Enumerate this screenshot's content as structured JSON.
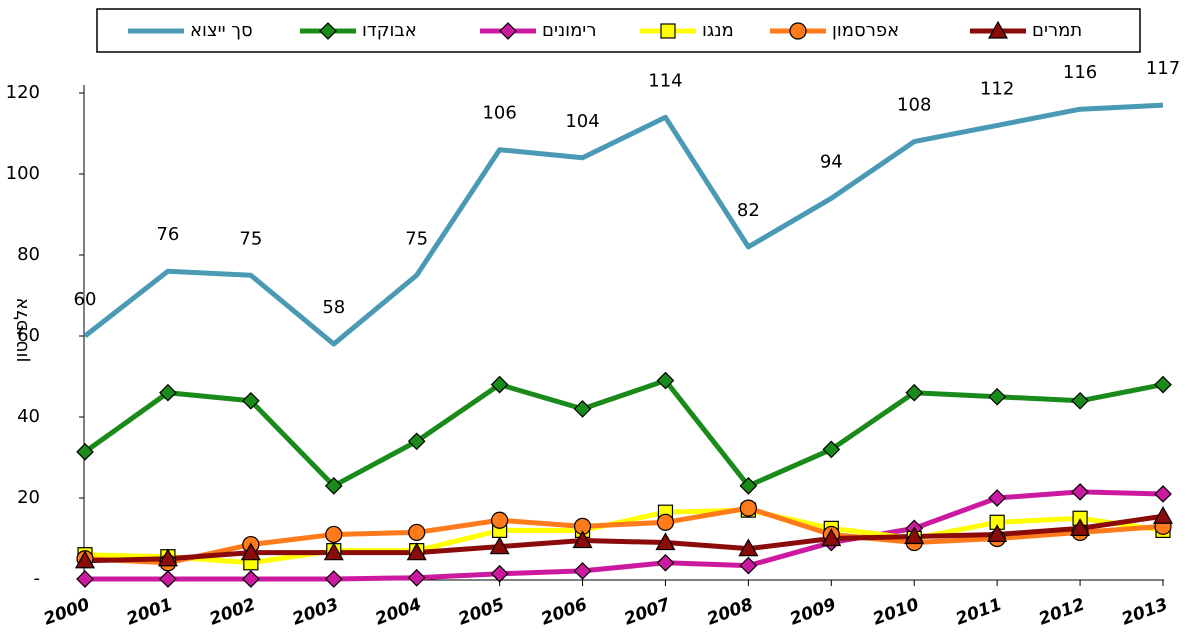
{
  "chart_data": {
    "type": "line",
    "y_label": "אלפי טון",
    "categories": [
      "2000",
      "2001",
      "2002",
      "2003",
      "2004",
      "2005",
      "2006",
      "2007",
      "2008",
      "2009",
      "2010",
      "2011",
      "2012",
      "2013"
    ],
    "ylim": [
      0,
      120
    ],
    "yticks": [
      {
        "value": 0,
        "label": "-"
      },
      20,
      40,
      60,
      80,
      100,
      120
    ],
    "series": [
      {
        "name": "סך ייצוא",
        "color": "#4a9ab5",
        "values": [
          60,
          76,
          75,
          58,
          75,
          106,
          104,
          114,
          82,
          94,
          108,
          112,
          116,
          117
        ]
      },
      {
        "name": "אבוקדו",
        "color": "#1a8a1a",
        "marker": "diamond",
        "values": [
          31.4,
          46,
          44,
          23,
          34,
          48,
          42,
          49,
          23,
          32,
          46,
          45,
          44,
          48
        ]
      },
      {
        "name": "רימונים",
        "color": "#cc1aa0",
        "marker": "diamond",
        "values": [
          0,
          0,
          0,
          0,
          0.3,
          1.3,
          2,
          4,
          3.3,
          9,
          12.5,
          20,
          21.5,
          21
        ]
      },
      {
        "name": "מנגו",
        "color": "#ffff00",
        "marker": "square",
        "values": [
          6,
          5.5,
          4,
          7,
          7,
          12,
          12,
          16.5,
          17,
          12.5,
          10,
          14,
          15,
          12
        ]
      },
      {
        "name": "אפרסמון",
        "color": "#ff7a1a",
        "marker": "circle",
        "values": [
          5,
          4,
          8.5,
          11,
          11.5,
          14.5,
          13,
          14,
          17.5,
          11,
          9,
          10,
          11.5,
          13
        ]
      },
      {
        "name": "תמרים",
        "color": "#8b0a0a",
        "marker": "triangle",
        "values": [
          4.5,
          5,
          6.5,
          6.5,
          6.5,
          8,
          9.5,
          9,
          7.5,
          10,
          10.5,
          11,
          12.5,
          15.5
        ]
      }
    ]
  }
}
